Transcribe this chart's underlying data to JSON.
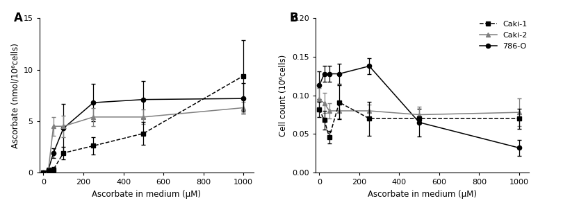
{
  "panel_A": {
    "x": [
      0,
      25,
      50,
      100,
      250,
      500,
      1000
    ],
    "caki1": {
      "y": [
        0.0,
        0.2,
        0.3,
        1.9,
        2.6,
        3.8,
        9.4
      ],
      "yerr": [
        0.0,
        0.1,
        0.25,
        0.6,
        0.85,
        1.1,
        3.5
      ]
    },
    "caki2": {
      "y": [
        0.0,
        0.25,
        4.5,
        4.5,
        5.4,
        5.4,
        6.3
      ],
      "yerr": [
        0.0,
        0.15,
        0.9,
        1.05,
        0.85,
        0.7,
        0.55
      ]
    },
    "786o": {
      "y": [
        0.0,
        0.3,
        1.9,
        4.3,
        6.8,
        7.1,
        7.2
      ],
      "yerr": [
        0.0,
        0.15,
        0.45,
        2.4,
        1.8,
        1.8,
        1.5
      ]
    },
    "ylabel": "Ascorbate (nmol/10⁶cells)",
    "xlabel": "Ascorbate in medium (μM)",
    "ylim": [
      0,
      15
    ],
    "yticks": [
      0,
      5,
      10,
      15
    ],
    "xlim": [
      -20,
      1050
    ],
    "xticks": [
      0,
      200,
      400,
      600,
      800,
      1000
    ],
    "panel_label": "A"
  },
  "panel_B": {
    "x": [
      0,
      25,
      50,
      100,
      250,
      500,
      1000
    ],
    "caki1": {
      "y": [
        0.082,
        0.068,
        0.046,
        0.091,
        0.07,
        0.07,
        0.07
      ],
      "yerr": [
        0.01,
        0.012,
        0.008,
        0.022,
        0.022,
        0.003,
        0.013
      ]
    },
    "caki2": {
      "y": [
        0.095,
        0.09,
        0.08,
        0.08,
        0.08,
        0.075,
        0.078
      ],
      "yerr": [
        0.015,
        0.013,
        0.01,
        0.01,
        0.008,
        0.01,
        0.018
      ]
    },
    "786o": {
      "y": [
        0.113,
        0.128,
        0.128,
        0.128,
        0.138,
        0.065,
        0.032
      ],
      "yerr": [
        0.018,
        0.01,
        0.01,
        0.013,
        0.01,
        0.018,
        0.01
      ]
    },
    "ylabel": "Cell count (10⁶cells)",
    "xlabel": "Ascorbate in medium (μM)",
    "ylim": [
      0.0,
      0.2
    ],
    "yticks": [
      0.0,
      0.05,
      0.1,
      0.15,
      0.2
    ],
    "xlim": [
      -20,
      1050
    ],
    "xticks": [
      0,
      200,
      400,
      600,
      800,
      1000
    ],
    "panel_label": "B"
  },
  "legend": {
    "caki1_label": "Caki-1",
    "caki2_label": "Caki-2",
    "786o_label": "786-O"
  }
}
